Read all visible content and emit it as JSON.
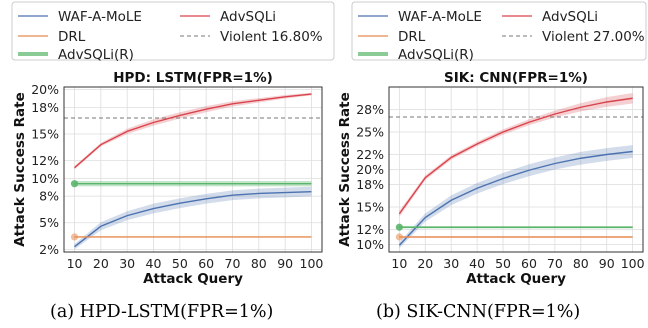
{
  "panels": [
    {
      "legend": [
        {
          "label": "WAF-A-MoLE",
          "color": "#4c72b0",
          "style": "line"
        },
        {
          "label": "AdvSQLi",
          "color": "#d9434b",
          "style": "line"
        },
        {
          "label": "DRL",
          "color": "#e88a4f",
          "style": "line"
        },
        {
          "label": "Violent 16.80%",
          "color": "#777777",
          "style": "dashed"
        },
        {
          "label": "AdvSQLi(R)",
          "color": "#59b56a",
          "style": "line"
        }
      ],
      "caption": "(a)  HPD-LSTM(FPR=1%)"
    },
    {
      "legend": [
        {
          "label": "WAF-A-MoLE",
          "color": "#4c72b0",
          "style": "line"
        },
        {
          "label": "AdvSQLi",
          "color": "#d9434b",
          "style": "line"
        },
        {
          "label": "DRL",
          "color": "#e88a4f",
          "style": "line"
        },
        {
          "label": "Violent 27.00%",
          "color": "#777777",
          "style": "dashed"
        },
        {
          "label": "AdvSQLi(R)",
          "color": "#59b56a",
          "style": "line"
        }
      ],
      "caption": "(b)  SIK-CNN(FPR=1%)"
    }
  ],
  "chart_data": [
    {
      "type": "line",
      "title": "HPD: LSTM(FPR=1%)",
      "xlabel": "Attack Query",
      "ylabel": "Attack Success Rate",
      "x": [
        10,
        20,
        30,
        40,
        50,
        60,
        70,
        80,
        90,
        100
      ],
      "xlim": [
        6,
        104
      ],
      "ylim": [
        1.7,
        20.3
      ],
      "yticks": [
        2,
        5,
        8,
        10,
        12,
        15,
        18,
        20
      ],
      "ytick_labels": [
        "2%",
        "5%",
        "8%",
        "10%",
        "12%",
        "15%",
        "18%",
        "20%"
      ],
      "xticks": [
        10,
        20,
        30,
        40,
        50,
        60,
        70,
        80,
        90,
        100
      ],
      "xtick_labels": [
        "10",
        "20",
        "30",
        "40",
        "50",
        "60",
        "70",
        "80",
        "90",
        "100"
      ],
      "grid": true,
      "series": [
        {
          "name": "WAF-A-MoLE",
          "color": "#4c72b0",
          "values": [
            2.3,
            4.6,
            5.8,
            6.6,
            7.2,
            7.7,
            8.1,
            8.3,
            8.4,
            8.5
          ],
          "band": [
            0.3,
            0.45,
            0.5,
            0.55,
            0.55,
            0.55,
            0.55,
            0.55,
            0.55,
            0.55
          ]
        },
        {
          "name": "AdvSQLi",
          "color": "#d9434b",
          "values": [
            11.2,
            13.8,
            15.3,
            16.3,
            17.1,
            17.8,
            18.4,
            18.8,
            19.2,
            19.5
          ],
          "band": [
            0.2,
            0.2,
            0.3,
            0.35,
            0.35,
            0.35,
            0.3,
            0.25,
            0.2,
            0.15
          ]
        },
        {
          "name": "DRL",
          "color": "#e88a4f",
          "values": [
            3.4,
            3.4,
            3.4,
            3.4,
            3.4,
            3.4,
            3.4,
            3.4,
            3.4,
            3.4
          ]
        },
        {
          "name": "AdvSQLi(R)",
          "color": "#59b56a",
          "values": [
            9.4,
            9.4,
            9.4,
            9.4,
            9.4,
            9.4,
            9.4,
            9.4,
            9.4,
            9.4
          ],
          "band": [
            0.3,
            0.3,
            0.3,
            0.3,
            0.3,
            0.3,
            0.3,
            0.3,
            0.3,
            0.3
          ]
        }
      ],
      "hline": {
        "name": "Violent 16.80%",
        "value": 16.8,
        "color": "#777777"
      }
    },
    {
      "type": "line",
      "title": "SIK: CNN(FPR=1%)",
      "xlabel": "Attack Query",
      "ylabel": "Attack Success Rate",
      "x": [
        10,
        20,
        30,
        40,
        50,
        60,
        70,
        80,
        90,
        100
      ],
      "xlim": [
        6,
        104
      ],
      "ylim": [
        9,
        31
      ],
      "yticks": [
        10,
        12,
        15,
        18,
        20,
        22,
        25,
        28
      ],
      "ytick_labels": [
        "10%",
        "12%",
        "15%",
        "18%",
        "20%",
        "22%",
        "25%",
        "28%"
      ],
      "xticks": [
        10,
        20,
        30,
        40,
        50,
        60,
        70,
        80,
        90,
        100
      ],
      "xtick_labels": [
        "10",
        "20",
        "30",
        "40",
        "50",
        "60",
        "70",
        "80",
        "90",
        "100"
      ],
      "grid": true,
      "series": [
        {
          "name": "WAF-A-MoLE",
          "color": "#4c72b0",
          "values": [
            9.9,
            13.6,
            15.9,
            17.5,
            18.8,
            19.9,
            20.8,
            21.5,
            22.0,
            22.4
          ],
          "band": [
            0.4,
            0.55,
            0.65,
            0.7,
            0.75,
            0.8,
            0.8,
            0.85,
            0.85,
            0.85
          ]
        },
        {
          "name": "AdvSQLi",
          "color": "#d9434b",
          "values": [
            14.1,
            18.9,
            21.6,
            23.4,
            25.0,
            26.3,
            27.4,
            28.3,
            29.0,
            29.5
          ],
          "band": [
            0.4,
            0.3,
            0.3,
            0.3,
            0.35,
            0.4,
            0.45,
            0.55,
            0.65,
            0.7
          ]
        },
        {
          "name": "DRL",
          "color": "#e88a4f",
          "values": [
            11.0,
            11.0,
            11.0,
            11.0,
            11.0,
            11.0,
            11.0,
            11.0,
            11.0,
            11.0
          ]
        },
        {
          "name": "AdvSQLi(R)",
          "color": "#59b56a",
          "values": [
            12.3,
            12.3,
            12.3,
            12.3,
            12.3,
            12.3,
            12.3,
            12.3,
            12.3,
            12.3
          ],
          "band": [
            0.15,
            0.15,
            0.15,
            0.15,
            0.15,
            0.15,
            0.15,
            0.15,
            0.15,
            0.15
          ]
        }
      ],
      "hline": {
        "name": "Violent 27.00%",
        "value": 27.0,
        "color": "#777777"
      }
    }
  ]
}
